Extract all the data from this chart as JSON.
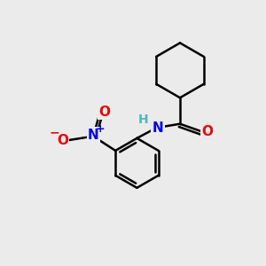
{
  "background_color": "#ebebeb",
  "bond_color": "#000000",
  "bond_width": 1.8,
  "atom_colors": {
    "H": "#4db8b8",
    "N": "#0000ee",
    "O": "#ee0000",
    "N+": "#0000ee",
    "O-": "#ee0000"
  },
  "font_size": 10,
  "fig_size": [
    3.0,
    3.0
  ],
  "dpi": 100,
  "xlim": [
    0,
    10
  ],
  "ylim": [
    0,
    10
  ]
}
